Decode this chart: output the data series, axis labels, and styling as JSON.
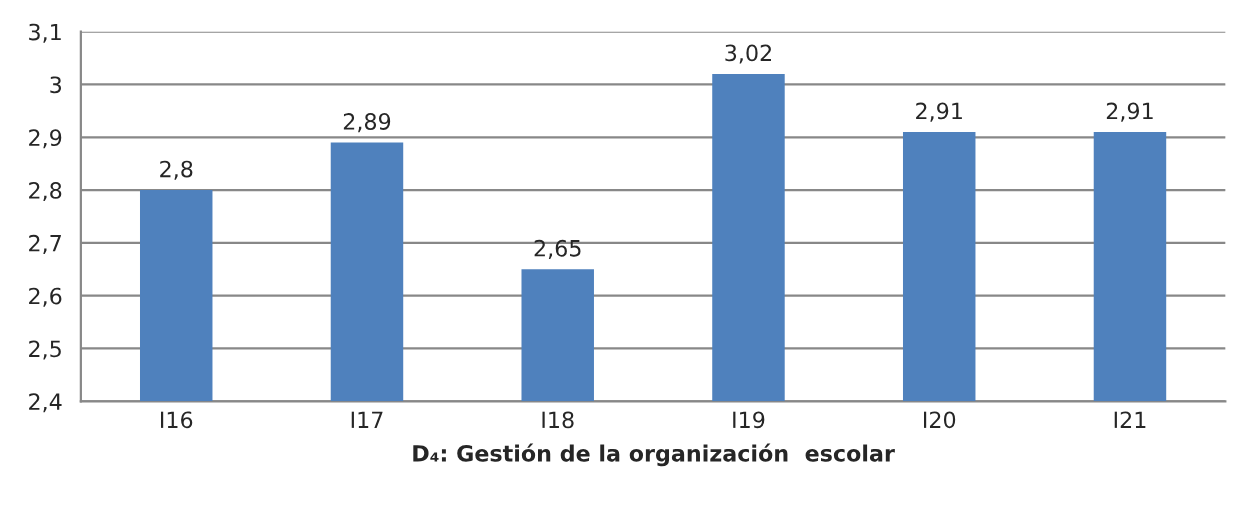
{
  "chart_data": {
    "type": "bar",
    "xlabel": "D₄: Gestión de la organización  escolar",
    "categories": [
      "I16",
      "I17",
      "I18",
      "I19",
      "I20",
      "I21"
    ],
    "values": [
      2.8,
      2.89,
      2.65,
      3.02,
      2.91,
      2.91
    ],
    "value_labels": [
      "2,8",
      "2,89",
      "2,65",
      "3,02",
      "2,91",
      "2,91"
    ],
    "color": "#4f81bd",
    "ylim": [
      2.4,
      3.1
    ],
    "yticks": [
      {
        "value": 2.4,
        "label": "2,4"
      },
      {
        "value": 2.5,
        "label": "2,5"
      },
      {
        "value": 2.6,
        "label": "2,6"
      },
      {
        "value": 2.7,
        "label": "2,7"
      },
      {
        "value": 2.8,
        "label": "2,8"
      },
      {
        "value": 2.9,
        "label": "2,9"
      },
      3,
      {
        "value": 3.1,
        "label": "3,1"
      }
    ],
    "grid": "y"
  }
}
